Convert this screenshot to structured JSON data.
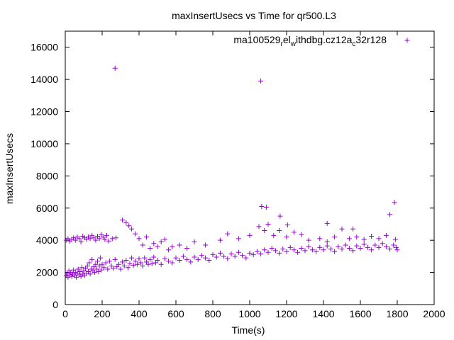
{
  "chart_data": {
    "type": "scatter",
    "title": "maxInsertUsecs vs Time for qr500.L3",
    "xlabel": "Time(s)",
    "ylabel": "maxInsertUsecs",
    "xlim": [
      0,
      2000
    ],
    "ylim": [
      0,
      17000
    ],
    "x_ticks": [
      0,
      200,
      400,
      600,
      800,
      1000,
      1200,
      1400,
      1600,
      1800,
      2000
    ],
    "y_ticks": [
      0,
      2000,
      4000,
      6000,
      8000,
      10000,
      12000,
      14000,
      16000
    ],
    "grid": false,
    "legend_position": "top-right",
    "marker": "+",
    "series": [
      {
        "legend": {
          "main": "ma100529",
          "sub1": "r",
          "mid1": "el",
          "sub2": "w",
          "mid2": "ithdbg.cz12a",
          "sub3": "c",
          "tail": "32r128"
        },
        "color": "#9400d3",
        "points": [
          [
            5,
            1800
          ],
          [
            10,
            1950
          ],
          [
            15,
            1700
          ],
          [
            20,
            2100
          ],
          [
            25,
            1850
          ],
          [
            30,
            2000
          ],
          [
            35,
            1750
          ],
          [
            40,
            1900
          ],
          [
            45,
            2150
          ],
          [
            50,
            1800
          ],
          [
            55,
            2000
          ],
          [
            60,
            1700
          ],
          [
            65,
            1950
          ],
          [
            70,
            2200
          ],
          [
            75,
            1850
          ],
          [
            80,
            2050
          ],
          [
            85,
            1750
          ],
          [
            90,
            2300
          ],
          [
            95,
            1900
          ],
          [
            100,
            2100
          ],
          [
            105,
            1800
          ],
          [
            110,
            2250
          ],
          [
            115,
            1950
          ],
          [
            120,
            2400
          ],
          [
            125,
            2050
          ],
          [
            130,
            2600
          ],
          [
            135,
            1900
          ],
          [
            140,
            2200
          ],
          [
            145,
            2800
          ],
          [
            150,
            2100
          ],
          [
            155,
            2350
          ],
          [
            160,
            2000
          ],
          [
            165,
            2500
          ],
          [
            170,
            2200
          ],
          [
            175,
            2700
          ],
          [
            180,
            2050
          ],
          [
            185,
            2400
          ],
          [
            190,
            2900
          ],
          [
            195,
            2150
          ],
          [
            200,
            2500
          ],
          [
            210,
            2300
          ],
          [
            220,
            2600
          ],
          [
            230,
            2200
          ],
          [
            240,
            2700
          ],
          [
            250,
            2400
          ],
          [
            260,
            2250
          ],
          [
            270,
            2800
          ],
          [
            280,
            2350
          ],
          [
            290,
            2500
          ],
          [
            300,
            2200
          ],
          [
            310,
            2650
          ],
          [
            320,
            2400
          ],
          [
            330,
            2750
          ],
          [
            340,
            2300
          ],
          [
            350,
            2550
          ],
          [
            360,
            2900
          ],
          [
            370,
            2450
          ],
          [
            380,
            2700
          ],
          [
            390,
            2500
          ],
          [
            400,
            2850
          ],
          [
            410,
            2600
          ],
          [
            420,
            2400
          ],
          [
            430,
            2900
          ],
          [
            440,
            2650
          ],
          [
            450,
            2500
          ],
          [
            460,
            2800
          ],
          [
            470,
            2550
          ],
          [
            480,
            2950
          ],
          [
            490,
            2600
          ],
          [
            500,
            2750
          ],
          [
            520,
            2500
          ],
          [
            540,
            2850
          ],
          [
            560,
            2700
          ],
          [
            580,
            2600
          ],
          [
            600,
            2900
          ],
          [
            620,
            2750
          ],
          [
            640,
            3000
          ],
          [
            660,
            2800
          ],
          [
            680,
            2650
          ],
          [
            700,
            2950
          ],
          [
            720,
            2800
          ],
          [
            740,
            3050
          ],
          [
            760,
            2900
          ],
          [
            780,
            2750
          ],
          [
            800,
            3100
          ],
          [
            820,
            2950
          ],
          [
            840,
            3200
          ],
          [
            860,
            3000
          ],
          [
            880,
            2850
          ],
          [
            900,
            3150
          ],
          [
            920,
            3000
          ],
          [
            940,
            3250
          ],
          [
            960,
            3050
          ],
          [
            980,
            2900
          ],
          [
            1000,
            3200
          ],
          [
            1020,
            3100
          ],
          [
            1040,
            3300
          ],
          [
            1060,
            3150
          ],
          [
            1080,
            3400
          ],
          [
            1100,
            3250
          ],
          [
            1120,
            3500
          ],
          [
            1140,
            3350
          ],
          [
            1160,
            3200
          ],
          [
            1180,
            3450
          ],
          [
            1200,
            3300
          ],
          [
            1220,
            3550
          ],
          [
            1240,
            3400
          ],
          [
            1260,
            3250
          ],
          [
            1280,
            3500
          ],
          [
            1300,
            3350
          ],
          [
            1320,
            3600
          ],
          [
            1340,
            3400
          ],
          [
            1360,
            3300
          ],
          [
            1380,
            3550
          ],
          [
            1400,
            3400
          ],
          [
            1420,
            3650
          ],
          [
            1440,
            3450
          ],
          [
            1460,
            3300
          ],
          [
            1480,
            3600
          ],
          [
            1500,
            3450
          ],
          [
            1520,
            3700
          ],
          [
            1540,
            3500
          ],
          [
            1560,
            3350
          ],
          [
            1580,
            3650
          ],
          [
            1600,
            3500
          ],
          [
            1620,
            3750
          ],
          [
            1640,
            3550
          ],
          [
            1660,
            3400
          ],
          [
            1680,
            3700
          ],
          [
            1700,
            3550
          ],
          [
            1720,
            3800
          ],
          [
            1740,
            3600
          ],
          [
            1760,
            3450
          ],
          [
            1780,
            3700
          ],
          [
            1795,
            3550
          ],
          [
            1800,
            3400
          ],
          [
            5,
            4000
          ],
          [
            15,
            4100
          ],
          [
            25,
            3950
          ],
          [
            35,
            4050
          ],
          [
            45,
            4150
          ],
          [
            55,
            4000
          ],
          [
            65,
            4200
          ],
          [
            75,
            4100
          ],
          [
            85,
            3900
          ],
          [
            95,
            4250
          ],
          [
            105,
            4150
          ],
          [
            115,
            4050
          ],
          [
            125,
            4200
          ],
          [
            135,
            4100
          ],
          [
            145,
            4300
          ],
          [
            155,
            4150
          ],
          [
            165,
            4000
          ],
          [
            175,
            4250
          ],
          [
            185,
            4100
          ],
          [
            195,
            4350
          ],
          [
            205,
            4200
          ],
          [
            215,
            4050
          ],
          [
            225,
            4300
          ],
          [
            235,
            3950
          ],
          [
            255,
            4100
          ],
          [
            275,
            4150
          ],
          [
            310,
            5250
          ],
          [
            330,
            5100
          ],
          [
            345,
            4900
          ],
          [
            360,
            4700
          ],
          [
            380,
            4400
          ],
          [
            400,
            4100
          ],
          [
            420,
            3700
          ],
          [
            440,
            4200
          ],
          [
            460,
            3500
          ],
          [
            480,
            3800
          ],
          [
            500,
            3600
          ],
          [
            520,
            3900
          ],
          [
            540,
            4050
          ],
          [
            560,
            3400
          ],
          [
            580,
            3600
          ],
          [
            620,
            3700
          ],
          [
            660,
            3500
          ],
          [
            700,
            3900
          ],
          [
            760,
            3700
          ],
          [
            840,
            4000
          ],
          [
            880,
            4400
          ],
          [
            940,
            4100
          ],
          [
            1000,
            4300
          ],
          [
            1050,
            4850
          ],
          [
            1080,
            4600
          ],
          [
            1100,
            5000
          ],
          [
            1130,
            4300
          ],
          [
            1160,
            4600
          ],
          [
            1200,
            4200
          ],
          [
            1240,
            4500
          ],
          [
            1280,
            4350
          ],
          [
            1320,
            4000
          ],
          [
            1380,
            4100
          ],
          [
            1420,
            3900
          ],
          [
            1460,
            4200
          ],
          [
            1500,
            4700
          ],
          [
            1540,
            4100
          ],
          [
            1580,
            4200
          ],
          [
            1620,
            4050
          ],
          [
            1660,
            4250
          ],
          [
            1700,
            4100
          ],
          [
            1740,
            4300
          ],
          [
            1790,
            4050
          ],
          [
            270,
            14700
          ],
          [
            1060,
            13900
          ],
          [
            1065,
            6100
          ],
          [
            1090,
            6050
          ],
          [
            1165,
            5500
          ],
          [
            1785,
            6350
          ],
          [
            1760,
            5600
          ],
          [
            1420,
            5050
          ],
          [
            1560,
            4700
          ],
          [
            1205,
            4950
          ]
        ]
      }
    ]
  }
}
